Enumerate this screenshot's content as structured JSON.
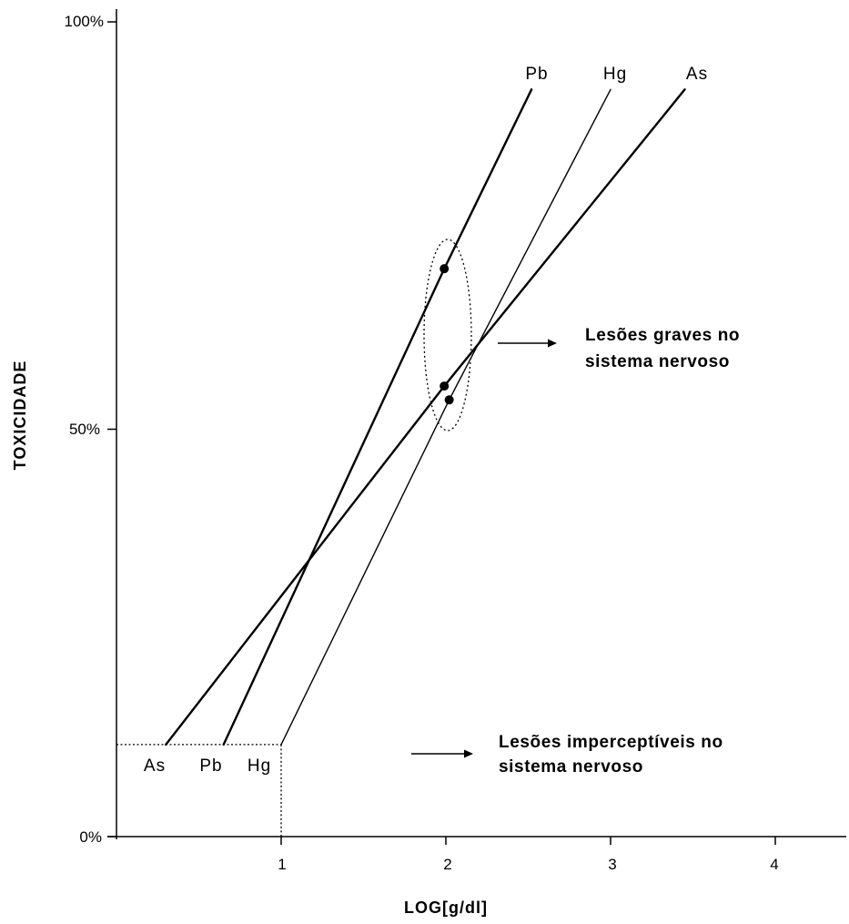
{
  "chart_data": {
    "type": "line",
    "xlabel": "LOG[g/dl]",
    "ylabel": "TOXICIDADE",
    "xlim": [
      -1,
      4.4
    ],
    "ylim": [
      0,
      100
    ],
    "x_ticks": [
      "1",
      "2",
      "3",
      "4"
    ],
    "y_ticks": [
      "0%",
      "50%",
      "100%"
    ],
    "series": [
      {
        "name": "Pb",
        "points": [
          [
            0.65,
            11.3
          ],
          [
            1.99,
            69.7
          ],
          [
            2.52,
            91.7
          ]
        ]
      },
      {
        "name": "Hg",
        "points": [
          [
            1.0,
            11.3
          ],
          [
            2.02,
            53.6
          ],
          [
            3.0,
            91.7
          ]
        ]
      },
      {
        "name": "As",
        "points": [
          [
            0.3,
            11.3
          ],
          [
            1.99,
            55.3
          ],
          [
            3.45,
            91.7
          ]
        ]
      }
    ],
    "threshold": {
      "x": 1.0,
      "y": 11.3
    },
    "highlight_points": [
      {
        "series": "Pb",
        "x": 1.99,
        "y": 69.7
      },
      {
        "series": "As",
        "x": 1.99,
        "y": 55.3
      },
      {
        "series": "Hg",
        "x": 2.02,
        "y": 53.6
      }
    ],
    "annotations": [
      {
        "lines": [
          "Lesões graves no",
          "sistema nervoso"
        ]
      },
      {
        "lines": [
          "Lesões imperceptíveis no",
          "sistema nervoso"
        ]
      }
    ]
  }
}
